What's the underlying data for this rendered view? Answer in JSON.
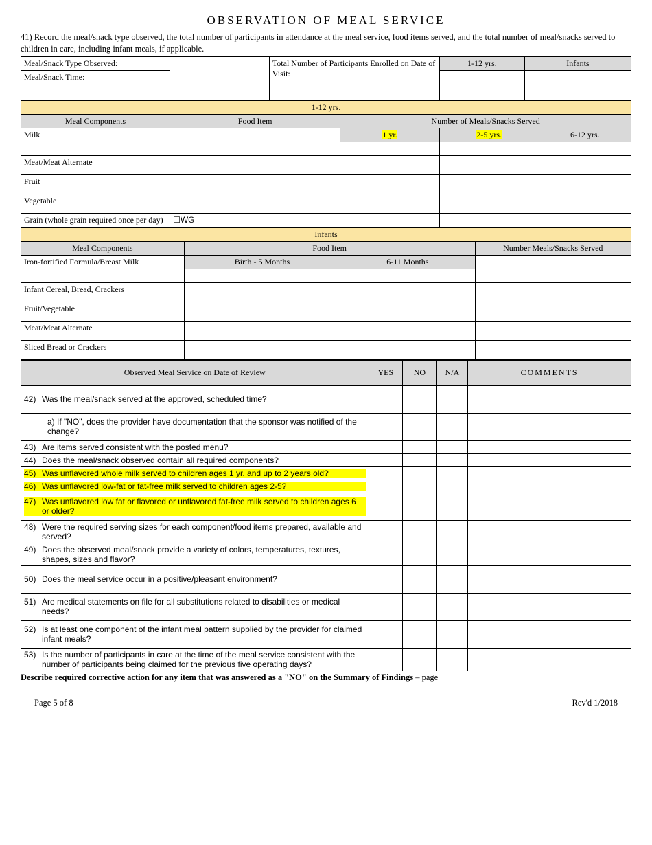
{
  "title": "OBSERVATION OF MEAL SERVICE",
  "intro": "41)  Record the meal/snack type observed, the total number of participants in attendance at the meal service, food items served, and the total number of meal/snacks served to children in care, including infant meals, if applicable.",
  "top": {
    "mealType": "Meal/Snack Type Observed:",
    "mealTime": "Meal/Snack Time:",
    "participants": "Total Number of Participants Enrolled on Date of Visit:",
    "col1": "1-12 yrs.",
    "col2": "Infants"
  },
  "band1": "1-12 yrs.",
  "t1": {
    "h1": "Meal Components",
    "h2": "Food Item",
    "h3": "Number of Meals/Snacks Served",
    "sub1": "1 yr.",
    "sub2": "2-5 yrs.",
    "sub3": "6-12 yrs.",
    "rows": [
      "Milk",
      "Meat/Meat Alternate",
      "Fruit",
      "Vegetable"
    ],
    "grainLabel": "Grain (whole grain required once per day)",
    "wg": "☐WG"
  },
  "band2": "Infants",
  "t2": {
    "h1": "Meal Components",
    "h2": "Food Item",
    "h3": "Number Meals/Snacks Served",
    "sub1": "Birth - 5 Months",
    "sub2": "6-11 Months",
    "rows": [
      "Iron-fortified Formula/Breast Milk",
      "Infant Cereal, Bread, Crackers",
      "Fruit/Vegetable",
      "Meat/Meat Alternate",
      "Sliced Bread or Crackers"
    ]
  },
  "q": {
    "header": "Observed Meal Service on Date of Review",
    "yes": "YES",
    "no": "NO",
    "na": "N/A",
    "comments": "COMMENTS",
    "items": [
      {
        "n": "42)",
        "t": "Was the meal/snack served at the approved, scheduled time?",
        "hl": false,
        "tall": true
      },
      {
        "n": "",
        "t": "a) If \"NO\", does the provider have documentation that the sponsor was notified of the change?",
        "hl": false,
        "tall": true,
        "indent": true
      },
      {
        "n": "43)",
        "t": "Are items served consistent with the posted menu?",
        "hl": false,
        "tall": false
      },
      {
        "n": "44)",
        "t": "Does the meal/snack observed contain all required components?",
        "hl": false,
        "tall": false
      },
      {
        "n": "45)",
        "t": "Was unflavored whole milk served to children ages 1 yr. and up to 2 years old?",
        "hl": true,
        "tall": false
      },
      {
        "n": "46)",
        "t": "Was unflavored low-fat or fat-free milk served to children ages 2-5?",
        "hl": true,
        "tall": false
      },
      {
        "n": "47)",
        "t": "Was unflavored low fat or flavored or unflavored fat-free milk served to children ages 6 or older?",
        "hl": true,
        "tall": true
      },
      {
        "n": "48)",
        "t": "Were the required serving sizes for each component/food items prepared, available and served?",
        "hl": false,
        "tall": false
      },
      {
        "n": "49)",
        "t": "Does the observed meal/snack provide a variety of colors, temperatures, textures, shapes, sizes and flavor?",
        "hl": false,
        "tall": false
      },
      {
        "n": "50)",
        "t": "Does the meal service occur in a positive/pleasant environment?",
        "hl": false,
        "tall": true
      },
      {
        "n": "51)",
        "t": "Are medical statements on file for all substitutions related to disabilities or medical needs?",
        "hl": false,
        "tall": true
      },
      {
        "n": "52)",
        "t": "Is at least one component of the infant meal pattern supplied by the provider for claimed infant meals?",
        "hl": false,
        "tall": true
      },
      {
        "n": "53)",
        "t": "Is the number of participants in care at the time of the meal service consistent with the number of participants being claimed for the previous five operating days?",
        "hl": false,
        "tall": false
      }
    ]
  },
  "footerNote": "Describe required corrective action for any item that was answered as a \"NO\" on the Summary of Findings",
  "footerNoteTail": " – page",
  "pageLeft": "Page 5 of 8",
  "pageRight": "Rev'd 1/2018"
}
